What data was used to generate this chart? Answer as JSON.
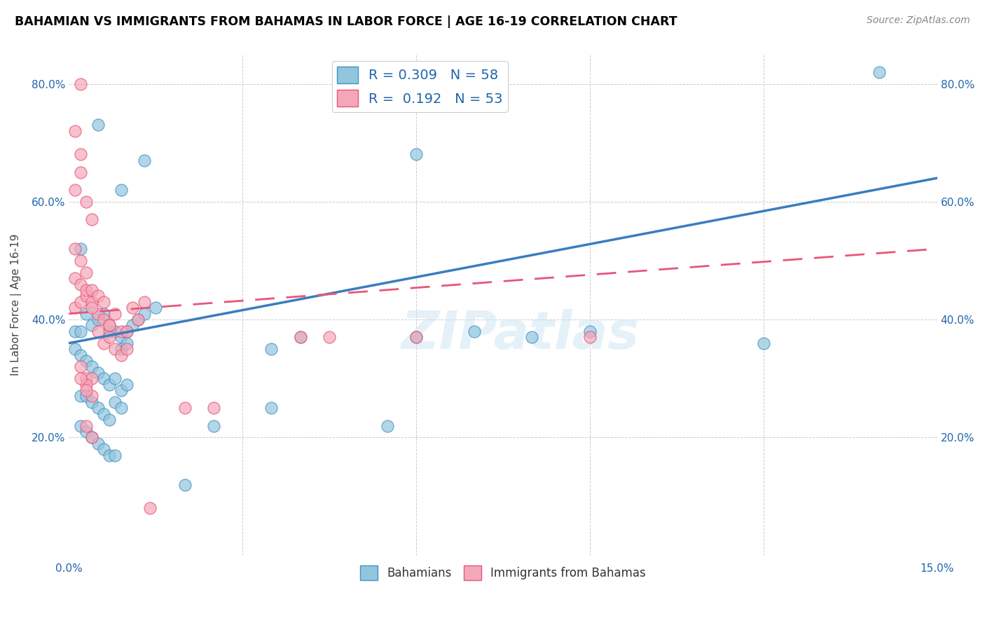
{
  "title": "BAHAMIAN VS IMMIGRANTS FROM BAHAMAS IN LABOR FORCE | AGE 16-19 CORRELATION CHART",
  "source": "Source: ZipAtlas.com",
  "ylabel": "In Labor Force | Age 16-19",
  "xlim": [
    0.0,
    0.15
  ],
  "ylim": [
    0.0,
    0.85
  ],
  "x_tick_positions": [
    0.0,
    0.03,
    0.06,
    0.09,
    0.12,
    0.15
  ],
  "x_tick_labels": [
    "0.0%",
    "",
    "",
    "",
    "",
    "15.0%"
  ],
  "y_tick_positions": [
    0.0,
    0.2,
    0.4,
    0.6,
    0.8
  ],
  "y_tick_labels": [
    "",
    "20.0%",
    "40.0%",
    "60.0%",
    "80.0%"
  ],
  "legend_R1": "0.309",
  "legend_N1": "58",
  "legend_R2": "0.192",
  "legend_N2": "53",
  "color_blue_fill": "#92c5de",
  "color_blue_edge": "#4393c3",
  "color_pink_fill": "#f4a7b9",
  "color_pink_edge": "#e8567a",
  "color_blue_line": "#3a7dbf",
  "color_pink_line": "#e8567a",
  "watermark": "ZIPatlas",
  "trend_blue_x0": 0.0,
  "trend_blue_y0": 0.36,
  "trend_blue_x1": 0.15,
  "trend_blue_y1": 0.64,
  "trend_pink_x0": 0.0,
  "trend_pink_y0": 0.41,
  "trend_pink_x1": 0.15,
  "trend_pink_y1": 0.52,
  "blue_x": [
    0.005,
    0.009,
    0.013,
    0.002,
    0.001,
    0.002,
    0.003,
    0.004,
    0.005,
    0.006,
    0.007,
    0.008,
    0.009,
    0.01,
    0.011,
    0.012,
    0.013,
    0.015,
    0.001,
    0.002,
    0.003,
    0.004,
    0.005,
    0.006,
    0.007,
    0.008,
    0.009,
    0.01,
    0.002,
    0.003,
    0.004,
    0.005,
    0.006,
    0.007,
    0.008,
    0.009,
    0.01,
    0.002,
    0.003,
    0.004,
    0.005,
    0.006,
    0.007,
    0.008,
    0.009,
    0.06,
    0.07,
    0.08,
    0.09,
    0.14,
    0.055,
    0.035,
    0.04,
    0.06,
    0.12,
    0.035,
    0.025,
    0.02
  ],
  "blue_y": [
    0.73,
    0.62,
    0.67,
    0.52,
    0.38,
    0.38,
    0.41,
    0.39,
    0.4,
    0.41,
    0.38,
    0.38,
    0.37,
    0.38,
    0.39,
    0.4,
    0.41,
    0.42,
    0.35,
    0.34,
    0.33,
    0.32,
    0.31,
    0.3,
    0.29,
    0.3,
    0.35,
    0.36,
    0.27,
    0.27,
    0.26,
    0.25,
    0.24,
    0.23,
    0.26,
    0.28,
    0.29,
    0.22,
    0.21,
    0.2,
    0.19,
    0.18,
    0.17,
    0.17,
    0.25,
    0.37,
    0.38,
    0.37,
    0.38,
    0.82,
    0.22,
    0.35,
    0.37,
    0.68,
    0.36,
    0.25,
    0.22,
    0.12
  ],
  "pink_x": [
    0.001,
    0.002,
    0.003,
    0.004,
    0.005,
    0.006,
    0.007,
    0.008,
    0.009,
    0.01,
    0.011,
    0.012,
    0.013,
    0.001,
    0.002,
    0.003,
    0.004,
    0.005,
    0.006,
    0.007,
    0.008,
    0.009,
    0.01,
    0.001,
    0.002,
    0.003,
    0.004,
    0.005,
    0.006,
    0.007,
    0.002,
    0.003,
    0.004,
    0.001,
    0.002,
    0.003,
    0.004,
    0.001,
    0.002,
    0.003,
    0.004,
    0.003,
    0.004,
    0.002,
    0.04,
    0.045,
    0.06,
    0.09,
    0.02,
    0.025,
    0.014,
    0.003,
    0.002
  ],
  "pink_y": [
    0.42,
    0.43,
    0.44,
    0.43,
    0.41,
    0.4,
    0.39,
    0.41,
    0.38,
    0.38,
    0.42,
    0.4,
    0.43,
    0.47,
    0.46,
    0.45,
    0.42,
    0.38,
    0.36,
    0.37,
    0.35,
    0.34,
    0.35,
    0.52,
    0.5,
    0.48,
    0.45,
    0.44,
    0.43,
    0.39,
    0.32,
    0.3,
    0.3,
    0.62,
    0.65,
    0.6,
    0.57,
    0.72,
    0.68,
    0.29,
    0.27,
    0.22,
    0.2,
    0.8,
    0.37,
    0.37,
    0.37,
    0.37,
    0.25,
    0.25,
    0.08,
    0.28,
    0.3
  ]
}
